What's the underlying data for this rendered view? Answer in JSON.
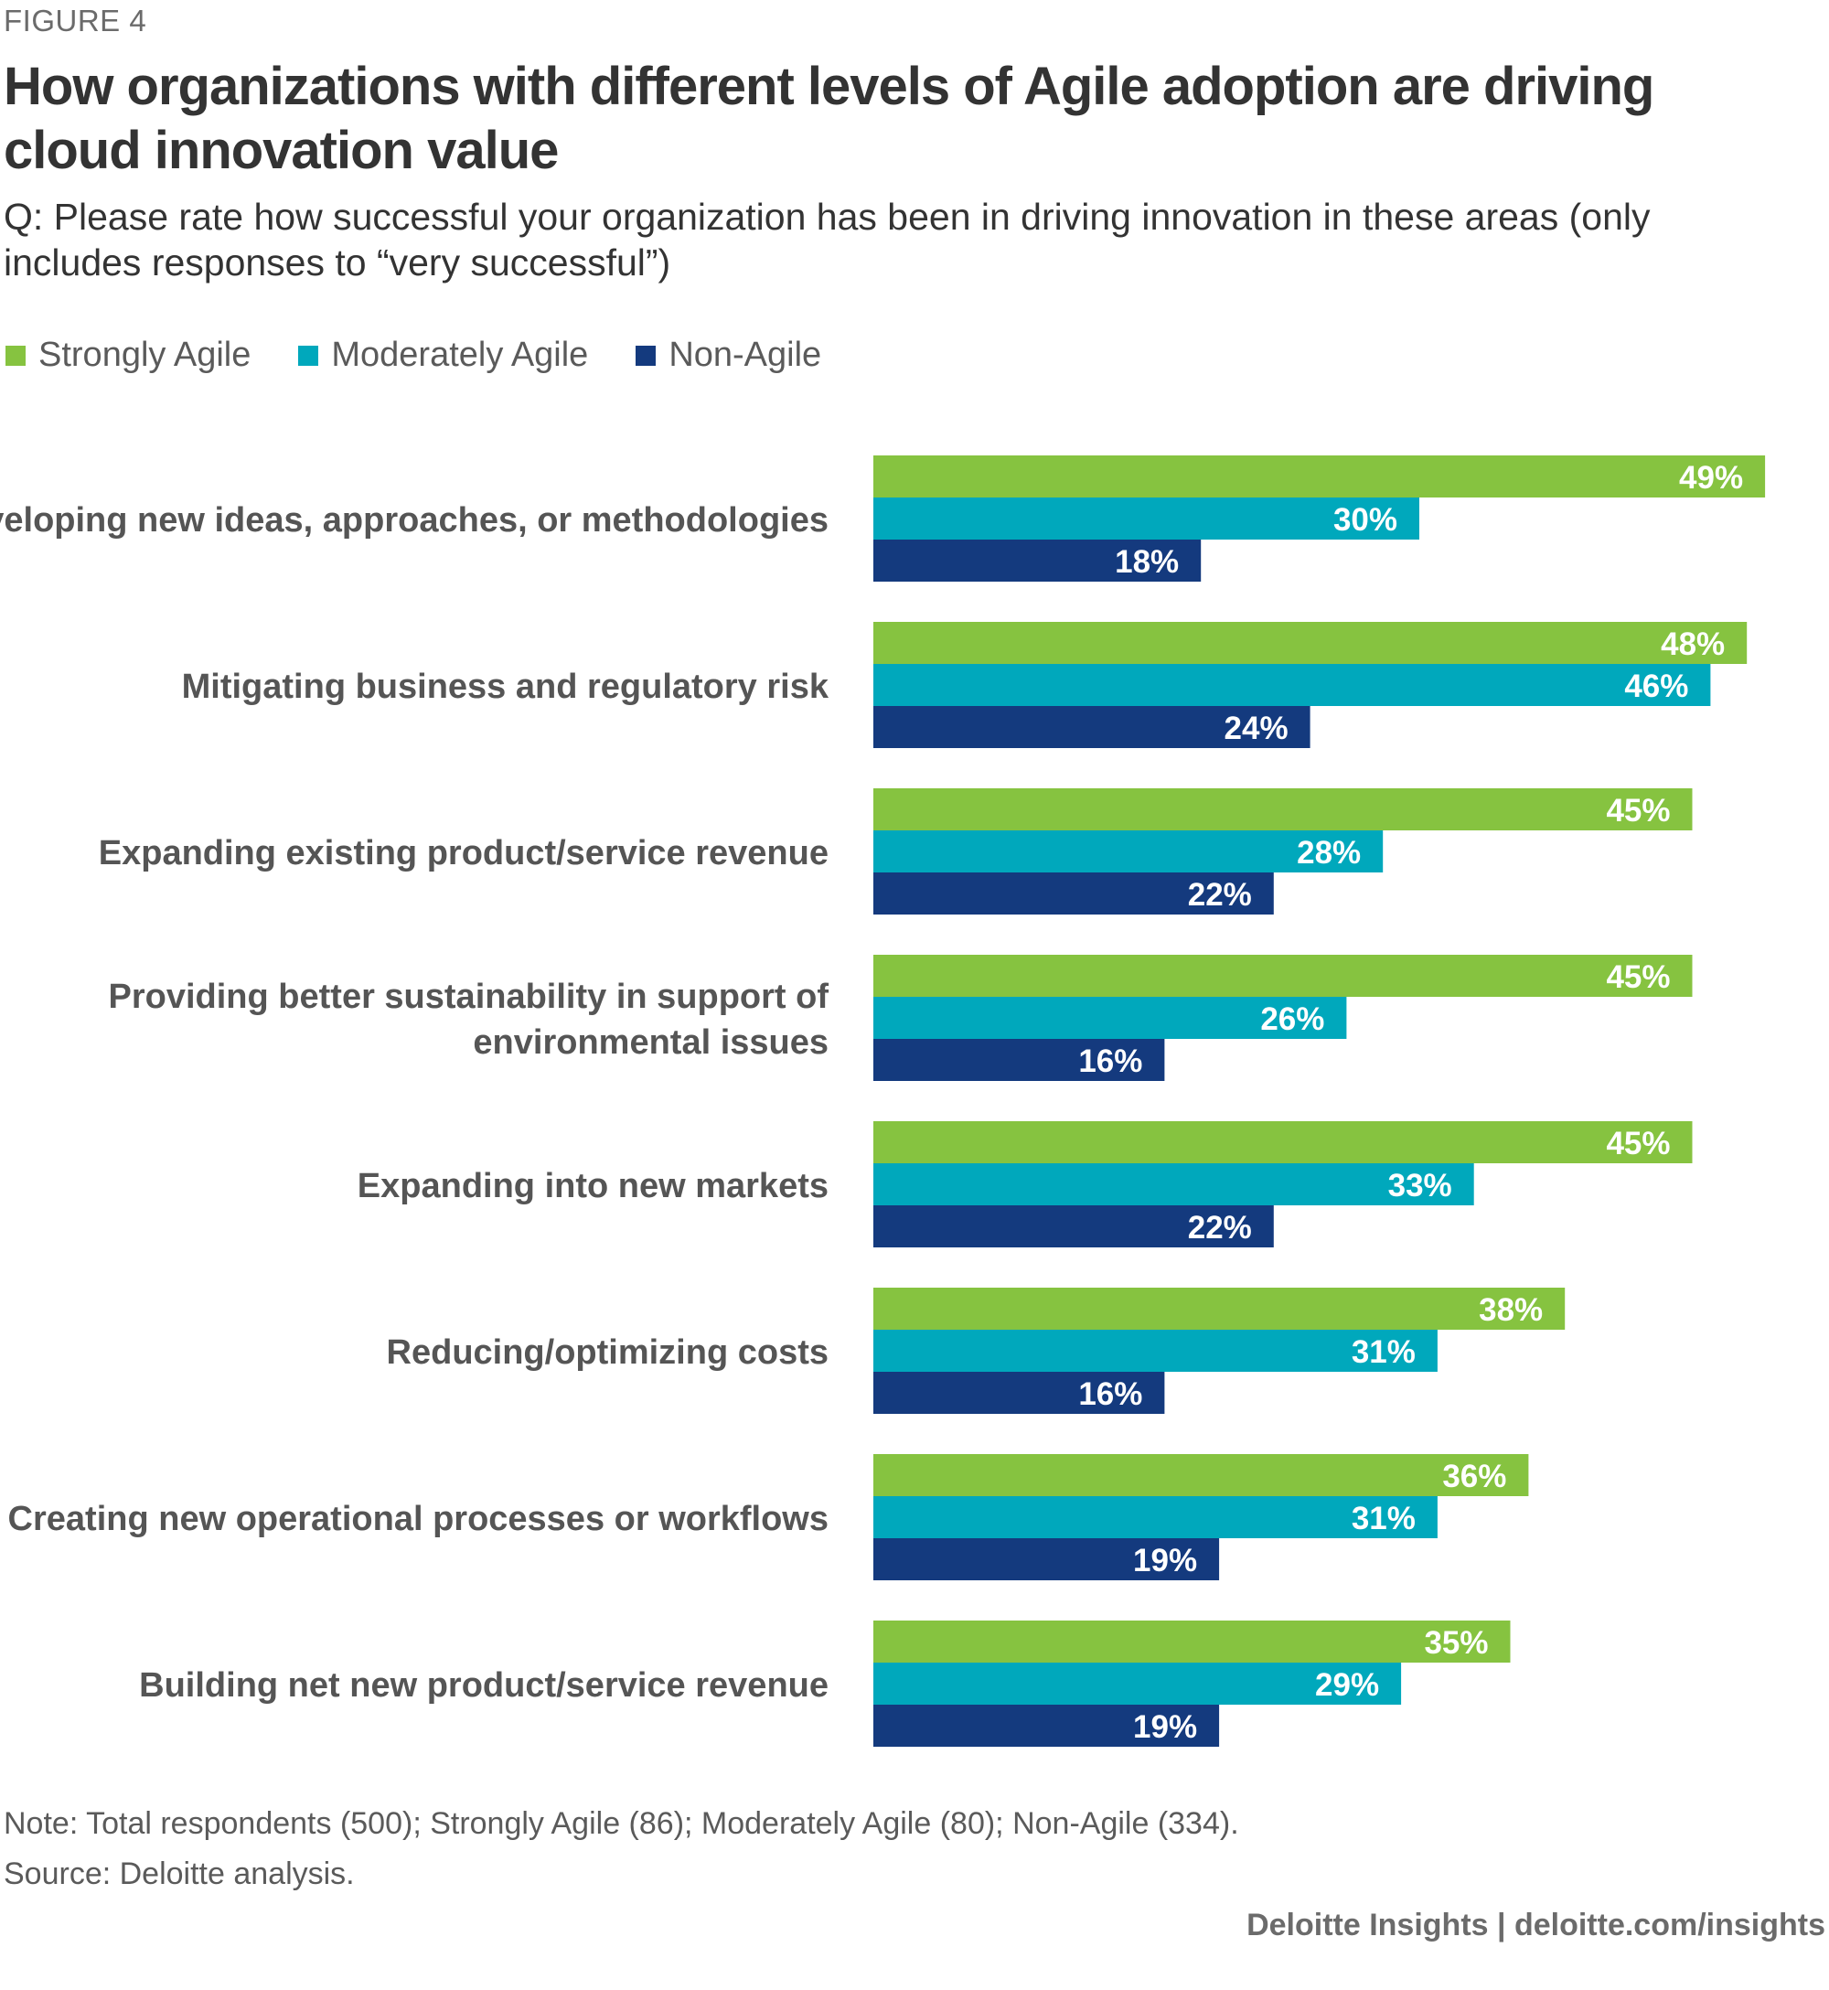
{
  "figure_label": "FIGURE 4",
  "title": "How organizations with different levels of Agile adoption are driving cloud innovation value",
  "subtitle": "Q:  Please rate how successful your organization has been in driving innovation in these areas (only includes responses to “very successful”)",
  "colors": {
    "strongly": "#86c340",
    "moderately": "#00a8bc",
    "non": "#143a7e",
    "label": "#555555"
  },
  "legend": [
    {
      "label": "Strongly Agile",
      "color": "#86c340"
    },
    {
      "label": "Moderately Agile",
      "color": "#00a8bc"
    },
    {
      "label": "Non-Agile",
      "color": "#143a7e"
    }
  ],
  "chart_data": {
    "type": "bar",
    "orientation": "horizontal",
    "title": "How organizations with different levels of Agile adoption are driving cloud innovation value",
    "xlim": [
      0,
      55
    ],
    "value_suffix": "%",
    "categories": [
      [
        "Developing new ideas, approaches, or methodologies"
      ],
      [
        "Mitigating business and regulatory risk"
      ],
      [
        "Expanding existing product/service revenue"
      ],
      [
        "Providing better sustainability in support of",
        "environmental issues"
      ],
      [
        "Expanding into new markets"
      ],
      [
        "Reducing/optimizing costs"
      ],
      [
        "Creating new operational processes or workflows"
      ],
      [
        "Building net new product/service revenue"
      ]
    ],
    "series": [
      {
        "name": "Strongly Agile",
        "values": [
          49,
          48,
          45,
          45,
          45,
          38,
          36,
          35
        ]
      },
      {
        "name": "Moderately Agile",
        "values": [
          30,
          46,
          28,
          26,
          33,
          31,
          31,
          29
        ]
      },
      {
        "name": "Non-Agile",
        "values": [
          18,
          24,
          22,
          16,
          22,
          16,
          19,
          19
        ]
      }
    ]
  },
  "note": "Note: Total respondents (500); Strongly Agile (86); Moderately Agile (80); Non-Agile (334).",
  "source": "Source: Deloitte analysis.",
  "credit": "Deloitte Insights | deloitte.com/insights"
}
